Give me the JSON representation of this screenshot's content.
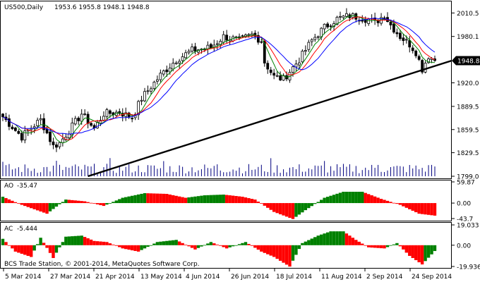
{
  "chart_title": {
    "symbol_tf": "US500,Daily",
    "ohlc": "1953.6 1955.8 1948.1 1948.8"
  },
  "price_marker": "1948.8",
  "watermark": "BCS Trade Station, © 2001-2014, MetaQuotes Software Corp.",
  "colors": {
    "bull": "#008000",
    "bear": "#ff0000",
    "ma_fast": "#008000",
    "ma_mid": "#ff0000",
    "ma_slow": "#0000ff",
    "trendline": "#000000",
    "volume": "#000080",
    "grid": "#c0c0c0"
  },
  "chart_data": [
    {
      "type": "candlestick",
      "name": "US500,Daily",
      "ylim": [
        1799.0,
        2020.0
      ],
      "y_ticks": [
        "2010.5",
        "1980.1",
        "1948.8",
        "1920.0",
        "1889.5",
        "1859.5",
        "1829.5",
        "1799.0"
      ],
      "x_ticks": [
        "5 Mar 2014",
        "27 Mar 2014",
        "21 Apr 2014",
        "13 May 2014",
        "4 Jun 2014",
        "26 Jun 2014",
        "18 Jul 2014",
        "11 Aug 2014",
        "2 Sep 2014",
        "24 Sep 2014"
      ],
      "close_trajectory": [
        [
          0,
          1876
        ],
        [
          6,
          1850
        ],
        [
          9,
          1862
        ],
        [
          12,
          1872
        ],
        [
          16,
          1838
        ],
        [
          18,
          1842
        ],
        [
          25,
          1880
        ],
        [
          29,
          1861
        ],
        [
          32,
          1880
        ],
        [
          37,
          1882
        ],
        [
          41,
          1875
        ],
        [
          44,
          1900
        ],
        [
          50,
          1930
        ],
        [
          55,
          1950
        ],
        [
          60,
          1962
        ],
        [
          66,
          1966
        ],
        [
          70,
          1980
        ],
        [
          75,
          1975
        ],
        [
          79,
          1982
        ],
        [
          82,
          1975
        ],
        [
          83,
          1947
        ],
        [
          86,
          1928
        ],
        [
          89,
          1925
        ],
        [
          94,
          1950
        ],
        [
          98,
          1975
        ],
        [
          102,
          1992
        ],
        [
          106,
          2003
        ],
        [
          110,
          2007
        ],
        [
          113,
          2005
        ],
        [
          116,
          2002
        ],
        [
          118,
          1998
        ],
        [
          121,
          2008
        ],
        [
          123,
          1995
        ],
        [
          126,
          1980
        ],
        [
          129,
          1970
        ],
        [
          131,
          1960
        ],
        [
          133,
          1938
        ],
        [
          135,
          1955
        ],
        [
          137,
          1948.8
        ]
      ],
      "trendline": {
        "from": [
          "21 Apr 2014",
          1799
        ],
        "to": [
          "24 Sep 2014",
          1944
        ]
      }
    },
    {
      "type": "bar",
      "name": "AO",
      "current_value": "-35.47",
      "ylim": [
        -43.7,
        59.87
      ],
      "y_ticks": [
        "59.87",
        "0.00",
        "-43.7"
      ],
      "value_trajectory": [
        [
          0,
          18
        ],
        [
          6,
          -5
        ],
        [
          14,
          -30
        ],
        [
          20,
          10
        ],
        [
          26,
          5
        ],
        [
          32,
          -8
        ],
        [
          38,
          15
        ],
        [
          45,
          28
        ],
        [
          52,
          26
        ],
        [
          58,
          15
        ],
        [
          64,
          22
        ],
        [
          70,
          24
        ],
        [
          76,
          18
        ],
        [
          80,
          10
        ],
        [
          86,
          -25
        ],
        [
          92,
          -45
        ],
        [
          96,
          -20
        ],
        [
          102,
          15
        ],
        [
          108,
          32
        ],
        [
          114,
          32
        ],
        [
          120,
          12
        ],
        [
          126,
          -5
        ],
        [
          132,
          -30
        ],
        [
          137,
          -35.47
        ]
      ]
    },
    {
      "type": "bar",
      "name": "AC",
      "current_value": "-5.444",
      "ylim": [
        -19.936,
        19.033
      ],
      "y_ticks": [
        "19.033",
        "0.00",
        "-19.936"
      ],
      "value_trajectory": [
        [
          0,
          6
        ],
        [
          4,
          -6
        ],
        [
          9,
          -11
        ],
        [
          12,
          7
        ],
        [
          16,
          -12
        ],
        [
          20,
          8
        ],
        [
          25,
          9
        ],
        [
          29,
          4
        ],
        [
          33,
          3
        ],
        [
          38,
          -3
        ],
        [
          43,
          -6
        ],
        [
          49,
          3
        ],
        [
          55,
          5
        ],
        [
          61,
          -4
        ],
        [
          66,
          3
        ],
        [
          71,
          -3
        ],
        [
          77,
          3
        ],
        [
          82,
          -6
        ],
        [
          86,
          -11
        ],
        [
          91,
          -20
        ],
        [
          95,
          2
        ],
        [
          100,
          9
        ],
        [
          104,
          13
        ],
        [
          108,
          13
        ],
        [
          112,
          5
        ],
        [
          116,
          -2
        ],
        [
          121,
          -3
        ],
        [
          125,
          2
        ],
        [
          129,
          -10
        ],
        [
          133,
          -18
        ],
        [
          137,
          -5.444
        ]
      ]
    }
  ]
}
